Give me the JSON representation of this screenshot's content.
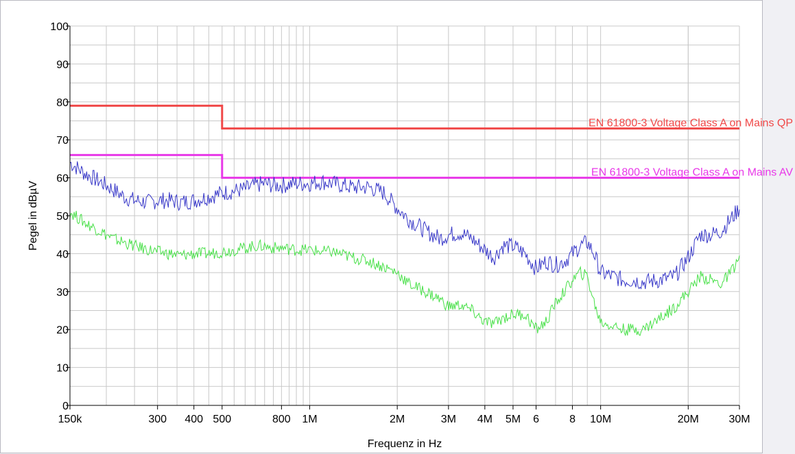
{
  "chart_data": {
    "type": "line",
    "xlabel": "Frequenz in Hz",
    "ylabel": "Pegel in dBµV",
    "x_scale": "log",
    "xlim": [
      150000,
      30000000
    ],
    "ylim": [
      0,
      100
    ],
    "grid": true,
    "x_tick_labels": [
      {
        "v": 150000,
        "t": "150k"
      },
      {
        "v": 300000,
        "t": "300"
      },
      {
        "v": 400000,
        "t": "400"
      },
      {
        "v": 500000,
        "t": "500"
      },
      {
        "v": 800000,
        "t": "800"
      },
      {
        "v": 1000000,
        "t": "1M"
      },
      {
        "v": 2000000,
        "t": "2M"
      },
      {
        "v": 3000000,
        "t": "3M"
      },
      {
        "v": 4000000,
        "t": "4M"
      },
      {
        "v": 5000000,
        "t": "5M"
      },
      {
        "v": 6000000,
        "t": "6"
      },
      {
        "v": 8000000,
        "t": "8"
      },
      {
        "v": 10000000,
        "t": "10M"
      },
      {
        "v": 20000000,
        "t": "20M"
      },
      {
        "v": 30000000,
        "t": "30M"
      }
    ],
    "y_ticks": [
      0,
      10,
      20,
      30,
      40,
      50,
      60,
      70,
      80,
      90,
      100
    ],
    "limits": [
      {
        "label": "EN 61800-3 Voltage Class A on Mains QP",
        "color": "#f04848",
        "points": [
          [
            150000,
            79
          ],
          [
            500000,
            79
          ],
          [
            500000,
            73
          ],
          [
            30000000,
            73
          ]
        ]
      },
      {
        "label": "EN 61800-3 Voltage Class A on Mains AV",
        "color": "#e838e8",
        "points": [
          [
            150000,
            66
          ],
          [
            500000,
            66
          ],
          [
            500000,
            60
          ],
          [
            30000000,
            60
          ]
        ]
      }
    ],
    "series": [
      {
        "color": "#3838c8",
        "x": [
          150000,
          170000,
          190000,
          210000,
          230000,
          250000,
          280000,
          300000,
          330000,
          360000,
          400000,
          450000,
          500000,
          550000,
          600000,
          650000,
          700000,
          750000,
          800000,
          900000,
          1000000,
          1100000,
          1200000,
          1400000,
          1600000,
          1800000,
          2000000,
          2200000,
          2500000,
          2800000,
          3000000,
          3300000,
          3600000,
          4000000,
          4300000,
          4600000,
          5000000,
          5500000,
          6000000,
          6500000,
          7000000,
          7500000,
          8000000,
          8500000,
          9000000,
          9500000,
          10000000,
          11000000,
          12000000,
          13000000,
          14000000,
          16000000,
          18000000,
          20000000,
          22000000,
          24000000,
          26000000,
          28000000,
          30000000
        ],
        "values": [
          64,
          61,
          59,
          57,
          55,
          54,
          53.5,
          54,
          54,
          53.5,
          54,
          55,
          56,
          56.5,
          57,
          58,
          58.5,
          58,
          58,
          58.5,
          58.5,
          59,
          58.5,
          57.5,
          57.5,
          56,
          52,
          49,
          46,
          44,
          45,
          45.5,
          44,
          41,
          39,
          42,
          42,
          40,
          36,
          38,
          37,
          38,
          40,
          42,
          43,
          40,
          35,
          34,
          33,
          33,
          32.5,
          33,
          34,
          39,
          45,
          45,
          46,
          49,
          52
        ]
      },
      {
        "color": "#48e048",
        "x": [
          150000,
          170000,
          190000,
          210000,
          230000,
          250000,
          280000,
          300000,
          330000,
          360000,
          400000,
          450000,
          500000,
          550000,
          600000,
          650000,
          700000,
          750000,
          800000,
          900000,
          1000000,
          1100000,
          1200000,
          1400000,
          1600000,
          1800000,
          2000000,
          2200000,
          2500000,
          2800000,
          3000000,
          3300000,
          3600000,
          4000000,
          4300000,
          4600000,
          5000000,
          5500000,
          6000000,
          6500000,
          7000000,
          7500000,
          8000000,
          8500000,
          9000000,
          9500000,
          10000000,
          11000000,
          12000000,
          13000000,
          14000000,
          16000000,
          18000000,
          20000000,
          22000000,
          24000000,
          26000000,
          28000000,
          30000000
        ],
        "values": [
          51,
          48,
          46,
          44,
          43,
          42,
          41,
          40.5,
          40,
          39.5,
          40,
          40,
          40.5,
          41,
          41.5,
          42,
          42,
          41.5,
          41.5,
          41,
          41,
          40.5,
          40.5,
          39,
          38,
          36.5,
          35,
          32,
          30,
          28,
          26,
          26.5,
          25,
          22,
          21.5,
          23,
          24,
          24,
          20,
          22,
          27,
          30,
          33,
          35,
          34,
          27,
          22,
          21,
          20,
          20,
          20,
          23,
          26,
          30,
          34,
          33,
          32,
          35,
          39
        ]
      }
    ]
  }
}
